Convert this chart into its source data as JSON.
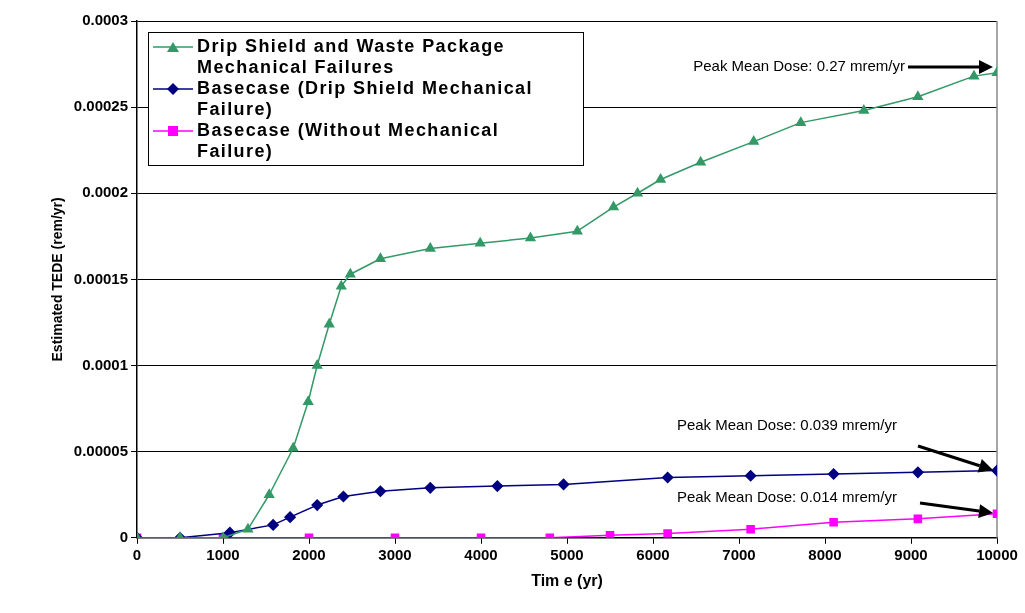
{
  "chart_data": {
    "type": "line",
    "xlabel": "Tim e (yr)",
    "ylabel": "Estimated TEDE (rem/yr)",
    "xlim": [
      0,
      10000
    ],
    "xticks": [
      0,
      1000,
      2000,
      3000,
      4000,
      5000,
      6000,
      7000,
      8000,
      9000,
      10000
    ],
    "ylim": [
      0,
      0.0003
    ],
    "yticks": [
      0,
      {
        "value": 5e-05,
        "label": "0.00005"
      },
      0.0001,
      0.00015,
      0.0002,
      0.00025,
      0.0003
    ],
    "grid": "y",
    "legend": "top left",
    "line_style": "solid",
    "series": [
      {
        "name": "Drip Shield and Waste Package Mechanical Failures",
        "color": "#339966",
        "marker": "triangle",
        "x": [
          0,
          500,
          1000,
          1290,
          1537,
          1816,
          1990,
          2095,
          2235,
          2375,
          2480,
          2830,
          3410,
          3990,
          4575,
          5120,
          5541,
          5820,
          6088,
          6554,
          7171,
          7718,
          8452,
          9080,
          9732,
          10000
        ],
        "values": [
          0,
          0,
          0,
          5e-06,
          2.5e-05,
          5.2e-05,
          7.9e-05,
          0.0001,
          0.000124,
          0.000146,
          0.000153,
          0.000162,
          0.000168,
          0.000171,
          0.000174,
          0.000178,
          0.000192,
          0.0002,
          0.000208,
          0.000218,
          0.00023,
          0.000241,
          0.000248,
          0.000256,
          0.000268,
          0.00027
        ]
      },
      {
        "name": "Basecase (Drip Shield Mechanical Failure)",
        "color": "#000080",
        "marker": "diamond",
        "x": [
          0,
          500,
          1080,
          1583,
          1780,
          2095,
          2400,
          2830,
          3410,
          4190,
          4960,
          6170,
          7135,
          8100,
          9080,
          10000
        ],
        "values": [
          0,
          0,
          3e-06,
          7.5e-06,
          1.2e-05,
          1.9e-05,
          2.4e-05,
          2.7e-05,
          2.9e-05,
          3e-05,
          3.1e-05,
          3.5e-05,
          3.6e-05,
          3.7e-05,
          3.8e-05,
          3.9e-05
        ]
      },
      {
        "name": "Basecase (Without Mechanical Failure)",
        "color": "#ff00ff",
        "marker": "square",
        "x": [
          0,
          1000,
          2000,
          3000,
          4000,
          4800,
          5500,
          6170,
          7135,
          8100,
          9080,
          10000
        ],
        "values": [
          0,
          0,
          0,
          0,
          0,
          0,
          1.5e-06,
          2.5e-06,
          5e-06,
          9e-06,
          1.1e-05,
          1.4e-05
        ]
      }
    ],
    "annotations": [
      "Peak Mean Dose: 0.27 mrem/yr",
      "Peak Mean Dose: 0.039 mrem/yr",
      "Peak Mean Dose: 0.014 mrem/yr"
    ]
  }
}
